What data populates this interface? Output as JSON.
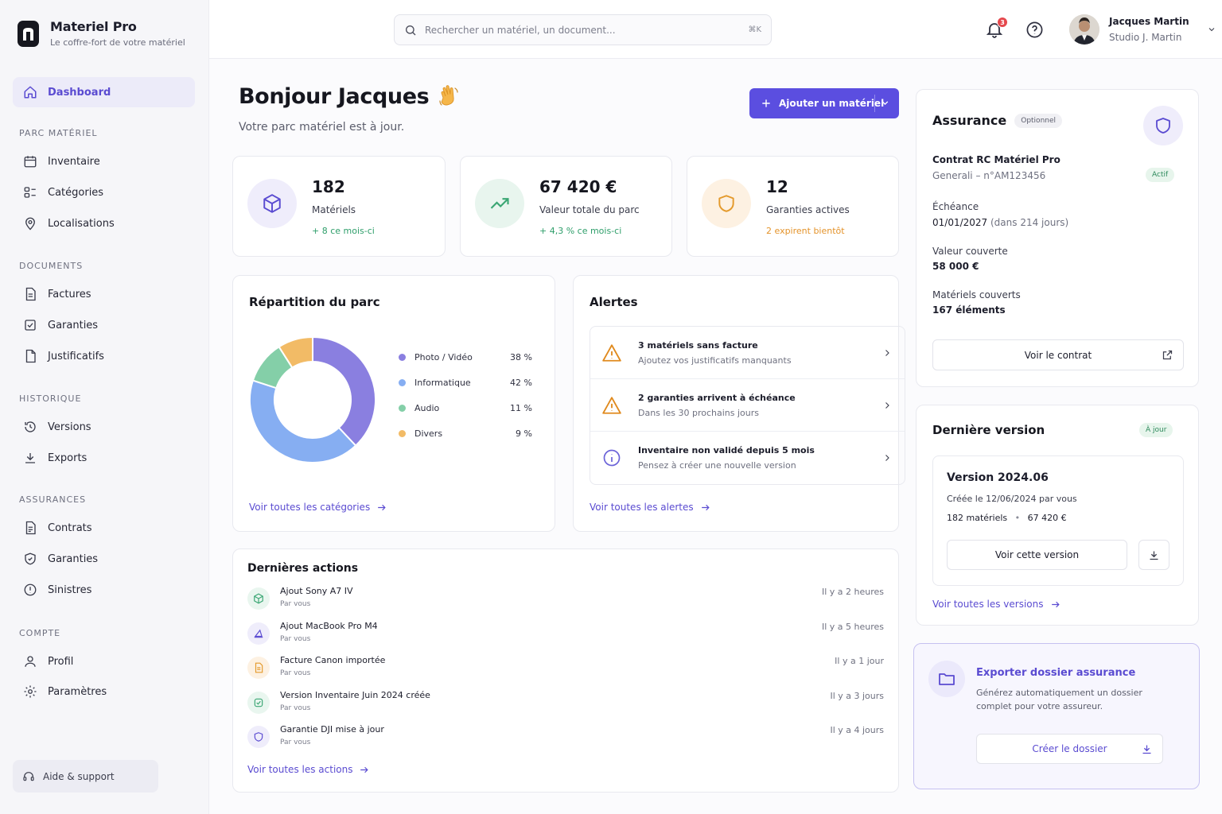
{
  "brand": {
    "name": "Materiel Pro",
    "tagline": "Le coffre-fort de votre matériel"
  },
  "sidebar": {
    "dashboard": "Dashboard",
    "sections": [
      "PARC MATÉRIEL",
      "DOCUMENTS",
      "HISTORIQUE",
      "ASSURANCES",
      "COMPTE"
    ],
    "items": [
      {
        "label": "Inventaire",
        "icon": "calendar-icon"
      },
      {
        "label": "Catégories",
        "icon": "categories-icon"
      },
      {
        "label": "Localisations",
        "icon": "location-pin-icon"
      },
      {
        "label": "Factures",
        "icon": "document-icon"
      },
      {
        "label": "Garanties",
        "icon": "checkbox-icon"
      },
      {
        "label": "Justificatifs",
        "icon": "file-icon"
      },
      {
        "label": "Versions",
        "icon": "history-icon"
      },
      {
        "label": "Exports",
        "icon": "download-icon"
      },
      {
        "label": "Contrats",
        "icon": "contract-icon"
      },
      {
        "label": "Garanties",
        "icon": "shield-check-icon"
      },
      {
        "label": "Sinistres",
        "icon": "alert-circle-icon"
      },
      {
        "label": "Profil",
        "icon": "user-icon"
      },
      {
        "label": "Paramètres",
        "icon": "gear-icon"
      }
    ],
    "help": "Aide & support"
  },
  "topbar": {
    "search_placeholder": "Rechercher un matériel, un document...",
    "search_shortcut": "⌘K",
    "notification_count": "3",
    "user_name": "Jacques Martin",
    "user_studio": "Studio J. Martin"
  },
  "header": {
    "greeting": "Bonjour Jacques",
    "subtitle": "Votre parc matériel est à jour.",
    "add_button": "Ajouter un matériel"
  },
  "stats": [
    {
      "value": "182",
      "label": "Matériels",
      "sub": "+ 8 ce mois-ci"
    },
    {
      "value": "67 420 €",
      "label": "Valeur totale du parc",
      "sub": "+ 4,3 % ce mois-ci"
    },
    {
      "value": "12",
      "label": "Garanties actives",
      "sub": "2 expirent bientôt"
    }
  ],
  "repartition": {
    "title": "Répartition du parc",
    "link": "Voir toutes les catégories"
  },
  "chart_data": {
    "type": "pie",
    "categories": [
      "Photo / Vidéo",
      "Informatique",
      "Audio",
      "Divers"
    ],
    "values": [
      38,
      42,
      11,
      9
    ],
    "labels": [
      "38 %",
      "42 %",
      "11 %",
      "9 %"
    ],
    "colors": [
      "#8a7fe0",
      "#86aef2",
      "#84cfa8",
      "#f2bb66"
    ]
  },
  "alerts": {
    "title": "Alertes",
    "items": [
      {
        "title": "3 matériels sans facture",
        "sub": "Ajoutez vos justificatifs manquants"
      },
      {
        "title": "2 garanties arrivent à échéance",
        "sub": "Dans les 30 prochains jours"
      },
      {
        "title": "Inventaire non validé depuis 5 mois",
        "sub": "Pensez à créer une nouvelle version"
      }
    ],
    "link": "Voir toutes les alertes"
  },
  "actions": {
    "title": "Dernières actions",
    "items": [
      {
        "title": "Ajout Sony A7 IV",
        "by": "Par vous",
        "when": "Il y a 2 heures"
      },
      {
        "title": "Ajout MacBook Pro M4",
        "by": "Par vous",
        "when": "Il y a 5 heures"
      },
      {
        "title": "Facture Canon importée",
        "by": "Par vous",
        "when": "Il y a 1 jour"
      },
      {
        "title": "Version Inventaire Juin 2024 créée",
        "by": "Par vous",
        "when": "Il y a 3 jours"
      },
      {
        "title": "Garantie DJI mise à jour",
        "by": "Par vous",
        "when": "Il y a 4 jours"
      }
    ],
    "link": "Voir toutes les actions"
  },
  "insurance": {
    "title": "Assurance",
    "tag": "Optionnel",
    "contract_name": "Contrat RC Matériel Pro",
    "contract_ref": "Generali – n°AM123456",
    "status": "Actif",
    "due_label": "Échéance",
    "due_date": "01/01/2027",
    "due_remaining": "(dans 214 jours)",
    "covered_value_label": "Valeur couverte",
    "covered_value": "58 000 €",
    "covered_items_label": "Matériels couverts",
    "covered_items": "167 éléments",
    "button": "Voir le contrat"
  },
  "version": {
    "title": "Dernière version",
    "status": "À jour",
    "name": "Version 2024.06",
    "created": "Créée le 12/06/2024 par vous",
    "count": "182 matériels",
    "bullet": "•",
    "value": "67 420 €",
    "button": "Voir cette version",
    "link": "Voir toutes les versions"
  },
  "export": {
    "title": "Exporter dossier assurance",
    "line1": "Générez automatiquement un dossier",
    "line2": "complet pour votre assureur.",
    "button": "Créer le dossier"
  }
}
